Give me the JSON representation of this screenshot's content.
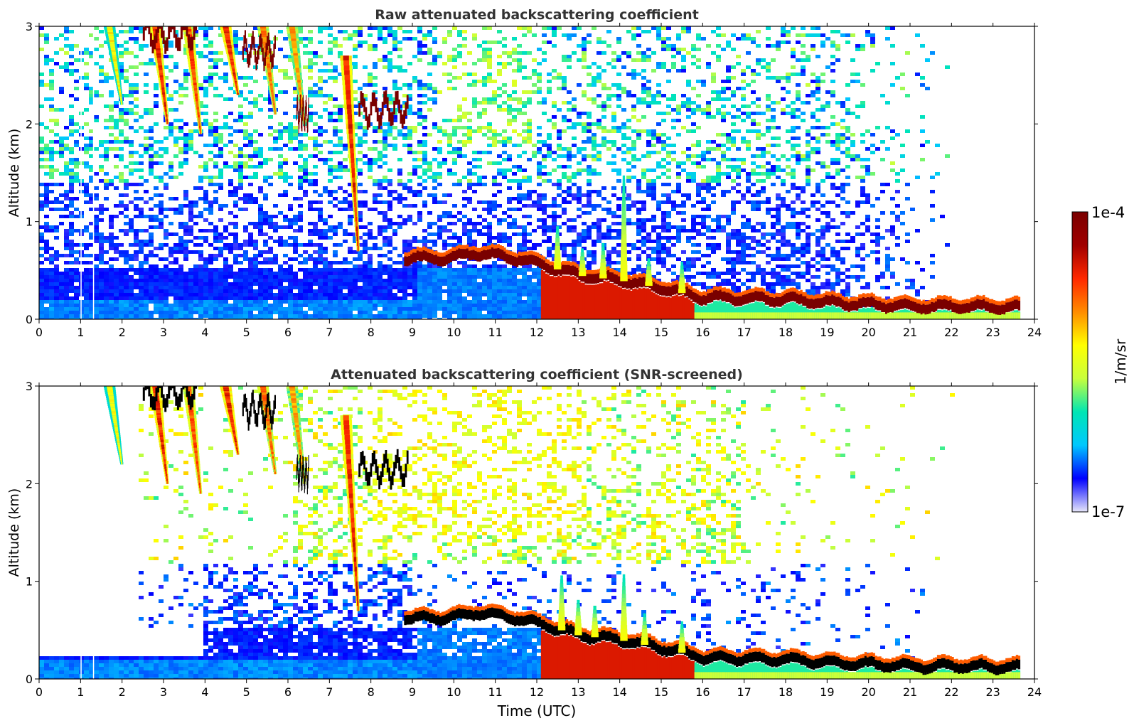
{
  "chart_data": [
    {
      "type": "heatmap",
      "title": "Raw attenuated backscattering coefficient",
      "xlabel": "",
      "ylabel": "Altitude (km)",
      "xlim": [
        0,
        24
      ],
      "ylim": [
        0,
        3
      ],
      "xticks": [
        "0",
        "1",
        "2",
        "3",
        "4",
        "5",
        "6",
        "7",
        "8",
        "9",
        "10",
        "11",
        "12",
        "13",
        "14",
        "15",
        "16",
        "17",
        "18",
        "19",
        "20",
        "21",
        "22",
        "23",
        "24"
      ],
      "yticks": [
        "0",
        "1",
        "2",
        "3"
      ],
      "features": {
        "noise_background_fade_hour": 18.5,
        "fall_streaks": [
          {
            "x": 1.7,
            "top": 3.0,
            "bottom": 2.2,
            "level": 0.6
          },
          {
            "x": 2.8,
            "top": 3.0,
            "bottom": 2.0,
            "level": 0.85
          },
          {
            "x": 3.6,
            "top": 3.0,
            "bottom": 1.9,
            "level": 0.8
          },
          {
            "x": 4.5,
            "top": 3.0,
            "bottom": 2.3,
            "level": 0.85
          },
          {
            "x": 5.4,
            "top": 3.0,
            "bottom": 2.1,
            "level": 0.75
          },
          {
            "x": 6.1,
            "top": 3.0,
            "bottom": 2.0,
            "level": 0.7
          },
          {
            "x": 7.4,
            "top": 2.7,
            "bottom": 0.7,
            "level": 0.85
          }
        ],
        "cloud_layers": [
          {
            "x_start": 2.5,
            "x_end": 3.8,
            "altitude": 2.92,
            "level": 1.0
          },
          {
            "x_start": 4.9,
            "x_end": 5.7,
            "altitude": 2.75,
            "level": 1.0
          },
          {
            "x_start": 6.2,
            "x_end": 6.5,
            "altitude": 2.1,
            "level": 1.0
          },
          {
            "x_start": 7.7,
            "x_end": 8.9,
            "altitude": 2.15,
            "level": 1.0
          }
        ],
        "boundary_layer": [
          [
            8.8,
            0.62
          ],
          [
            10,
            0.63
          ],
          [
            10.5,
            0.68
          ],
          [
            11.5,
            0.62
          ],
          [
            12.2,
            0.55
          ],
          [
            13,
            0.45
          ],
          [
            14,
            0.4
          ],
          [
            15,
            0.32
          ],
          [
            16,
            0.22
          ],
          [
            18,
            0.2
          ],
          [
            19,
            0.17
          ],
          [
            20,
            0.15
          ],
          [
            21,
            0.13
          ],
          [
            22,
            0.13
          ],
          [
            23.65,
            0.12
          ]
        ],
        "data_end_hour": 23.65
      }
    },
    {
      "type": "heatmap",
      "title": "Attenuated backscattering coefficient (SNR-screened)",
      "xlabel": "Time (UTC)",
      "ylabel": "Altitude (km)",
      "xlim": [
        0,
        24
      ],
      "ylim": [
        0,
        3
      ],
      "xticks": [
        "0",
        "1",
        "2",
        "3",
        "4",
        "5",
        "6",
        "7",
        "8",
        "9",
        "10",
        "11",
        "12",
        "13",
        "14",
        "15",
        "16",
        "17",
        "18",
        "19",
        "20",
        "21",
        "22",
        "23",
        "24"
      ],
      "yticks": [
        "0",
        "1",
        "2",
        "3"
      ],
      "features": {
        "screened_low_layer_top_km": 0.25,
        "cloud_layer_color": "#000000",
        "data_end_hour": 23.65
      }
    }
  ],
  "colorbar": {
    "label": "1/m/sr",
    "max_label": "1e-4",
    "min_label": "1e-7",
    "colors": [
      "#e6e6fa",
      "#0000ff",
      "#00c8ff",
      "#00e6b4",
      "#c8ff3c",
      "#ffff00",
      "#ff8c00",
      "#ff2800",
      "#a00000",
      "#7a0000"
    ]
  }
}
